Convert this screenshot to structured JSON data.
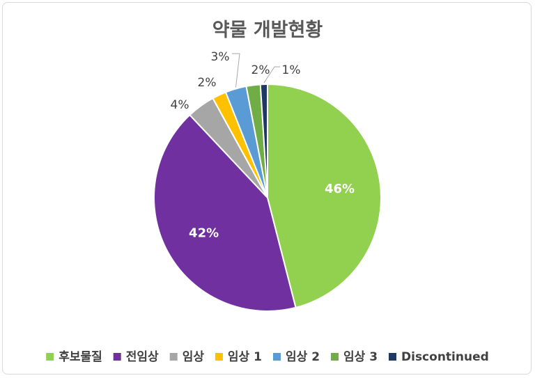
{
  "chart_data": {
    "type": "pie",
    "title": "약물 개발현황",
    "categories": [
      "후보물질",
      "전임상",
      "임상",
      "임상 1",
      "임상 2",
      "임상 3",
      "Discontinued"
    ],
    "values": [
      46,
      42,
      4,
      2,
      3,
      2,
      1
    ],
    "labels": [
      "46%",
      "42%",
      "4%",
      "2%",
      "3%",
      "2%",
      "1%"
    ],
    "colors": [
      "#92d050",
      "#7030a0",
      "#a6a6a6",
      "#ffc000",
      "#5b9bd5",
      "#70ad47",
      "#1f3864"
    ],
    "legend_position": "bottom",
    "start_angle": "12 o'clock",
    "direction": "clockwise"
  }
}
